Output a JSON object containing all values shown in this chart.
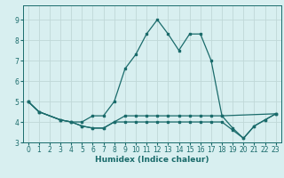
{
  "title": "",
  "xlabel": "Humidex (Indice chaleur)",
  "bg_color": "#d8eff0",
  "grid_color": "#c0d8d8",
  "line_color": "#1a6b6b",
  "xlim": [
    -0.5,
    23.5
  ],
  "ylim": [
    3.0,
    9.7
  ],
  "xticks": [
    0,
    1,
    2,
    3,
    4,
    5,
    6,
    7,
    8,
    9,
    10,
    11,
    12,
    13,
    14,
    15,
    16,
    17,
    18,
    19,
    20,
    21,
    22,
    23
  ],
  "yticks": [
    3,
    4,
    5,
    6,
    7,
    8,
    9
  ],
  "line1_x": [
    0,
    1,
    3,
    4,
    5,
    6,
    7,
    8,
    9,
    10,
    11,
    12,
    13,
    14,
    15,
    16,
    17,
    18,
    19,
    20,
    21,
    22,
    23
  ],
  "line1_y": [
    5.0,
    4.5,
    4.1,
    4.0,
    4.0,
    4.3,
    4.3,
    5.0,
    6.6,
    7.3,
    8.3,
    9.0,
    8.3,
    7.5,
    8.3,
    8.3,
    7.0,
    4.3,
    3.7,
    3.2,
    3.8,
    4.1,
    4.4
  ],
  "line2_x": [
    0,
    1,
    3,
    4,
    5,
    6,
    7,
    8,
    9,
    10,
    11,
    12,
    13,
    14,
    15,
    16,
    17,
    18,
    23
  ],
  "line2_y": [
    5.0,
    4.5,
    4.1,
    4.0,
    3.8,
    3.7,
    3.7,
    4.0,
    4.3,
    4.3,
    4.3,
    4.3,
    4.3,
    4.3,
    4.3,
    4.3,
    4.3,
    4.3,
    4.4
  ],
  "line3_x": [
    0,
    1,
    3,
    4,
    5,
    6,
    7,
    8,
    9,
    10,
    11,
    12,
    13,
    14,
    15,
    16,
    17,
    18,
    19,
    20,
    21,
    22,
    23
  ],
  "line3_y": [
    5.0,
    4.5,
    4.1,
    4.0,
    3.8,
    3.7,
    3.7,
    4.0,
    4.0,
    4.0,
    4.0,
    4.0,
    4.0,
    4.0,
    4.0,
    4.0,
    4.0,
    4.0,
    3.6,
    3.2,
    3.8,
    4.1,
    4.4
  ],
  "xlabel_fontsize": 6.5,
  "tick_fontsize": 5.5
}
